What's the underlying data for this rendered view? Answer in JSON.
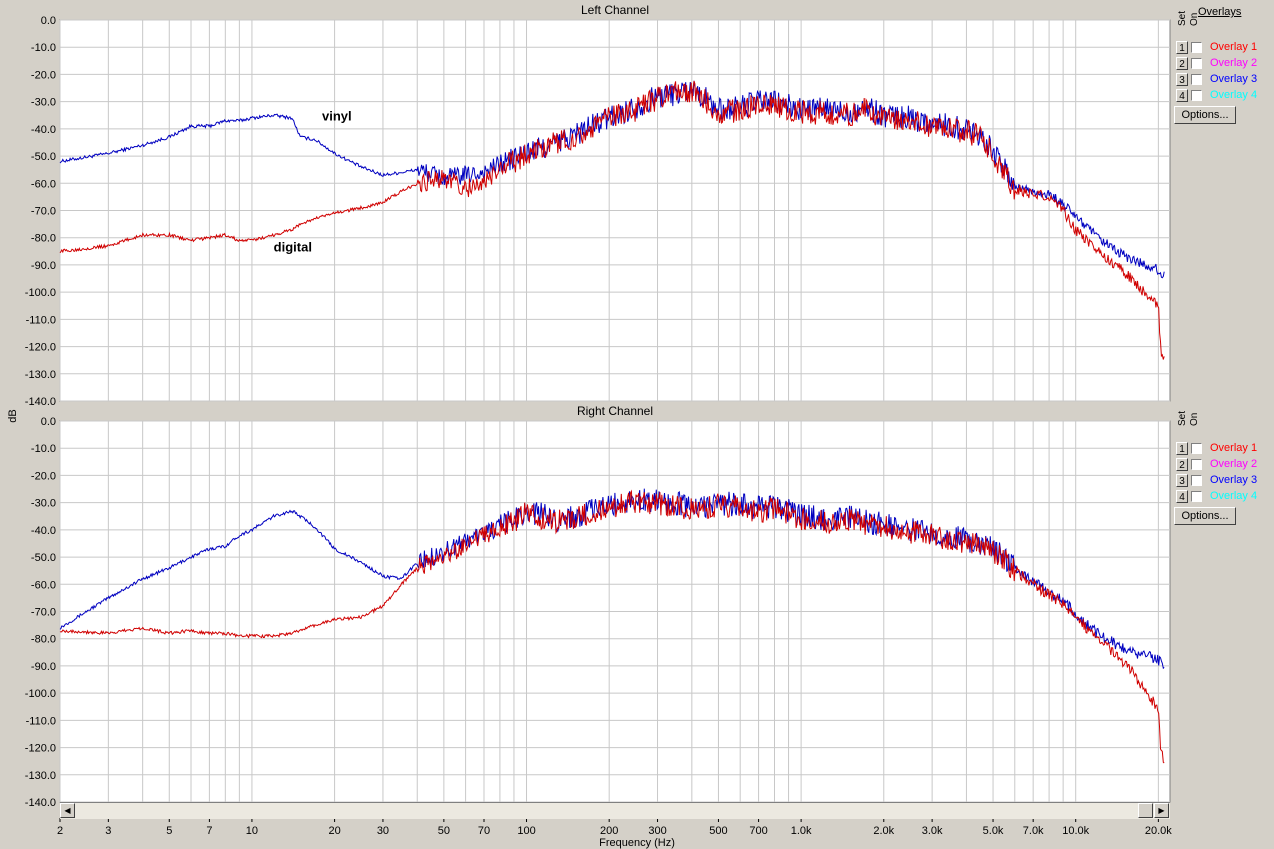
{
  "chart_data": [
    {
      "type": "line",
      "title": "Left Channel",
      "ylabel": "dB",
      "xlabel": "Frequency (Hz)",
      "xscale": "log",
      "xlim": [
        2,
        22050
      ],
      "ylim": [
        -140,
        0
      ],
      "grid": true,
      "yticks": [
        "0.0",
        "-10.0",
        "-20.0",
        "-30.0",
        "-40.0",
        "-50.0",
        "-60.0",
        "-70.0",
        "-80.0",
        "-90.0",
        "-100.0",
        "-110.0",
        "-120.0",
        "-130.0",
        "-140.0"
      ],
      "annotations": [
        {
          "text": "vinyl",
          "x": 18,
          "y": -37
        },
        {
          "text": "digital",
          "x": 12,
          "y": -85
        }
      ],
      "series": [
        {
          "color": "#0000c0",
          "x": [
            2,
            3,
            4,
            5,
            6,
            7,
            8,
            9,
            10,
            12,
            14,
            15,
            17,
            20,
            25,
            30,
            35,
            40,
            50,
            60,
            70,
            80,
            100,
            130,
            150,
            200,
            250,
            300,
            350,
            400,
            450,
            500,
            600,
            700,
            800,
            1000,
            1300,
            1500,
            1700,
            2000,
            2500,
            3000,
            3500,
            4000,
            4500,
            5000,
            5500,
            6000,
            7000,
            8000,
            9000,
            10000,
            12000,
            14000,
            16000,
            18000,
            20000,
            21000
          ],
          "values": [
            -52,
            -49,
            -46,
            -43,
            -39,
            -39,
            -37,
            -37,
            -36,
            -35,
            -36,
            -43,
            -44,
            -49,
            -54,
            -57,
            -56,
            -55,
            -58,
            -57,
            -56,
            -53,
            -49,
            -45,
            -42,
            -36,
            -32,
            -28,
            -27,
            -25,
            -29,
            -33,
            -32,
            -30,
            -30,
            -33,
            -33,
            -34,
            -32,
            -35,
            -36,
            -38,
            -39,
            -40,
            -42,
            -48,
            -55,
            -61,
            -63,
            -64,
            -68,
            -72,
            -80,
            -85,
            -88,
            -90,
            -92,
            -94
          ]
        },
        {
          "color": "#d00000",
          "x": [
            2,
            3,
            4,
            5,
            6,
            7,
            8,
            9,
            10,
            12,
            14,
            15,
            17,
            20,
            25,
            30,
            35,
            40,
            50,
            60,
            70,
            80,
            100,
            130,
            150,
            200,
            250,
            300,
            350,
            400,
            450,
            500,
            600,
            700,
            800,
            1000,
            1300,
            1500,
            1700,
            2000,
            2500,
            3000,
            3500,
            4000,
            4500,
            5000,
            5500,
            6000,
            7000,
            8000,
            9000,
            10000,
            12000,
            14000,
            16000,
            18000,
            19500,
            20000,
            20500,
            21000
          ],
          "values": [
            -85,
            -83,
            -79,
            -79,
            -81,
            -80,
            -79,
            -81,
            -81,
            -79,
            -77,
            -75,
            -73,
            -71,
            -69,
            -67,
            -63,
            -60,
            -58,
            -62,
            -60,
            -55,
            -49,
            -45,
            -43,
            -36,
            -33,
            -29,
            -27,
            -26,
            -30,
            -34,
            -33,
            -31,
            -31,
            -34,
            -34,
            -35,
            -33,
            -36,
            -37,
            -39,
            -40,
            -41,
            -43,
            -49,
            -56,
            -62,
            -64,
            -65,
            -70,
            -77,
            -85,
            -90,
            -95,
            -101,
            -104,
            -106,
            -123,
            -124
          ]
        }
      ]
    },
    {
      "type": "line",
      "title": "Right Channel",
      "ylabel": "dB",
      "xlabel": "Frequency (Hz)",
      "xscale": "log",
      "xlim": [
        2,
        22050
      ],
      "ylim": [
        -140,
        0
      ],
      "grid": true,
      "yticks": [
        "0.0",
        "-10.0",
        "-20.0",
        "-30.0",
        "-40.0",
        "-50.0",
        "-60.0",
        "-70.0",
        "-80.0",
        "-90.0",
        "-100.0",
        "-110.0",
        "-120.0",
        "-130.0",
        "-140.0"
      ],
      "series": [
        {
          "color": "#0000c0",
          "x": [
            2,
            3,
            4,
            5,
            6,
            7,
            8,
            9,
            10,
            12,
            14,
            15,
            17,
            20,
            25,
            30,
            35,
            40,
            50,
            60,
            70,
            80,
            100,
            130,
            150,
            200,
            250,
            300,
            350,
            400,
            450,
            500,
            600,
            700,
            800,
            1000,
            1300,
            1500,
            1700,
            2000,
            2500,
            3000,
            3500,
            4000,
            4500,
            5000,
            5500,
            6000,
            7000,
            8000,
            9000,
            10000,
            12000,
            14000,
            16000,
            18000,
            20000,
            21000
          ],
          "values": [
            -76,
            -65,
            -58,
            -54,
            -50,
            -47,
            -46,
            -42,
            -40,
            -35,
            -33,
            -35,
            -39,
            -47,
            -52,
            -57,
            -58,
            -52,
            -48,
            -44,
            -41,
            -39,
            -33,
            -36,
            -35,
            -31,
            -29,
            -29,
            -30,
            -32,
            -31,
            -30,
            -31,
            -32,
            -31,
            -35,
            -36,
            -35,
            -37,
            -38,
            -40,
            -41,
            -42,
            -44,
            -45,
            -47,
            -50,
            -54,
            -59,
            -63,
            -66,
            -71,
            -78,
            -82,
            -85,
            -86,
            -88,
            -90
          ]
        },
        {
          "color": "#d00000",
          "x": [
            2,
            3,
            4,
            5,
            6,
            7,
            8,
            9,
            10,
            12,
            14,
            15,
            17,
            20,
            25,
            30,
            35,
            40,
            50,
            60,
            70,
            80,
            100,
            130,
            150,
            200,
            250,
            300,
            350,
            400,
            450,
            500,
            600,
            700,
            800,
            1000,
            1300,
            1500,
            1700,
            2000,
            2500,
            3000,
            3500,
            4000,
            4500,
            5000,
            5500,
            6000,
            7000,
            8000,
            9000,
            10000,
            12000,
            14000,
            16000,
            18000,
            19500,
            20000,
            20500,
            21000
          ],
          "values": [
            -77,
            -78,
            -76,
            -78,
            -77,
            -78,
            -78,
            -79,
            -79,
            -79,
            -78,
            -77,
            -75,
            -73,
            -72,
            -68,
            -60,
            -54,
            -50,
            -46,
            -42,
            -40,
            -34,
            -37,
            -36,
            -32,
            -30,
            -30,
            -31,
            -33,
            -32,
            -31,
            -32,
            -33,
            -32,
            -36,
            -37,
            -36,
            -38,
            -39,
            -41,
            -42,
            -43,
            -45,
            -46,
            -48,
            -51,
            -55,
            -60,
            -64,
            -67,
            -72,
            -80,
            -86,
            -92,
            -100,
            -104,
            -107,
            -123,
            -124
          ]
        }
      ]
    }
  ],
  "x_ticks": [
    "2",
    "3",
    "5",
    "7",
    "10",
    "20",
    "30",
    "50",
    "70",
    "100",
    "200",
    "300",
    "500",
    "700",
    "1.0k",
    "2.0k",
    "3.0k",
    "5.0k",
    "7.0k",
    "10.0k",
    "20.0k"
  ],
  "x_tick_values": [
    2,
    3,
    5,
    7,
    10,
    20,
    30,
    50,
    70,
    100,
    200,
    300,
    500,
    700,
    1000,
    2000,
    3000,
    5000,
    7000,
    10000,
    20000
  ],
  "y_axis_label": "dB",
  "x_axis_label": "Frequency (Hz)",
  "overlay_panel": {
    "set_label": "Set",
    "on_label": "On",
    "overlays_label": "Overlays",
    "options_label": "Options...",
    "items": [
      {
        "num": "1",
        "label": "Overlay 1",
        "color": "#ff0000"
      },
      {
        "num": "2",
        "label": "Overlay 2",
        "color": "#ff00ff"
      },
      {
        "num": "3",
        "label": "Overlay 3",
        "color": "#0000ff"
      },
      {
        "num": "4",
        "label": "Overlay 4",
        "color": "#00ffff"
      }
    ]
  }
}
